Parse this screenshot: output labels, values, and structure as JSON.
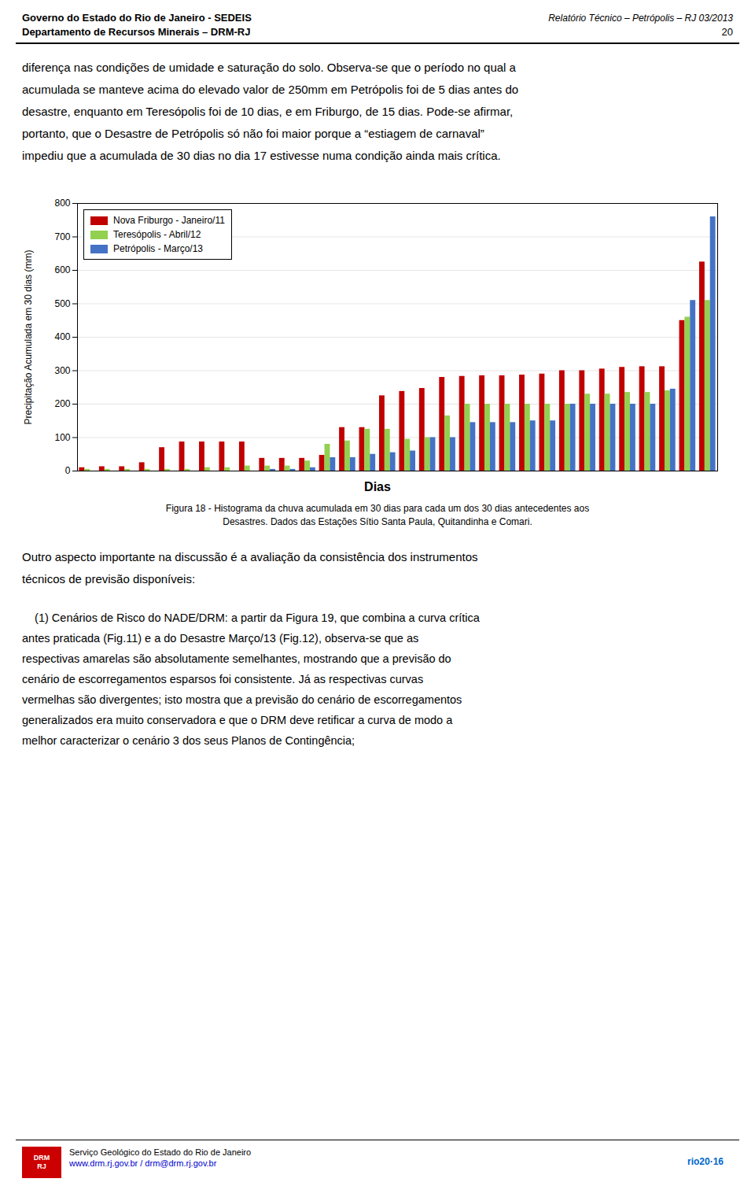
{
  "page": {
    "header_left": [
      "Governo do Estado do Rio de Janeiro - SEDEIS",
      "Departamento de Recursos Minerais – DRM-RJ"
    ],
    "header_right": [
      "Relatório Técnico – Petrópolis – RJ 03/2013",
      "20"
    ],
    "paragraphs_before": [
      [
        "diferença nas condições de umidade e saturação do solo. Observa-se que o período no qual a",
        "acumulada se manteve acima do elevado valor de 250mm em Petrópolis foi de 5 dias antes do",
        "desastre, enquanto em Teresópolis foi de 10 dias, e em Friburgo, de 15 dias. Pode-se afirmar,",
        "portanto, que o Desastre de Petrópolis só não foi maior porque a “estiagem de carnaval”",
        "impediu que a acumulada de 30 dias no dia 17 estivesse numa condição ainda mais crítica."
      ]
    ],
    "paragraphs_after": [
      [
        "Outro aspecto importante na discussão é a avaliação da consistência dos instrumentos",
        "técnicos de previsão disponíveis:"
      ],
      [
        "    (1) Cenários de Risco do NADE/DRM: a partir da Figura 19, que combina a curva crítica",
        "antes praticada (Fig.11) e a do Desastre Março/13 (Fig.12), observa-se que as",
        "respectivas amarelas são absolutamente semelhantes, mostrando que a previsão do",
        "cenário de escorregamentos esparsos foi consistente. Já as respectivas curvas",
        "vermelhas são divergentes; isto mostra que a previsão do cenário de escorregamentos",
        "generalizados era muito conservadora e que o DRM deve retificar a curva de modo a",
        "melhor caracterizar o cenário 3 dos seus Planos de Contingência;"
      ]
    ],
    "footer": {
      "logo": [
        "DRM",
        "RJ"
      ],
      "lines": [
        "Serviço Geológico do Estado do Rio de Janeiro",
        "www.drm.rj.gov.br / drm@drm.rj.gov.br"
      ],
      "right": "rio20·16"
    }
  },
  "chart_data": {
    "type": "bar",
    "ylabel": "Precipitação Acumulada em 30 dias (mm)",
    "xlabel": "Dias",
    "caption": [
      "Figura 18 - Histograma da chuva acumulada em 30 dias para cada um dos 30 dias antecedentes aos",
      "Desastres. Dados das Estações Sítio Santa Paula, Quitandinha e Comari."
    ],
    "categories": [
      null,
      null,
      null,
      null,
      null,
      null,
      null,
      null,
      null,
      null,
      null,
      null,
      null,
      null,
      null,
      null,
      null,
      null,
      null,
      null,
      null,
      null,
      null,
      null,
      null,
      null,
      null,
      null,
      null,
      null,
      null,
      null
    ],
    "series": [
      {
        "name": "Nova Friburgo - Janeiro/11",
        "color": "#C00000",
        "values": [
          10,
          13,
          13,
          25,
          70,
          87,
          87,
          87,
          87,
          38,
          38,
          38,
          47,
          130,
          130,
          225,
          238,
          247,
          280,
          283,
          285,
          285,
          287,
          290,
          300,
          300,
          305,
          310,
          312,
          312,
          450,
          625
        ]
      },
      {
        "name": "Teresópolis - Abril/12",
        "color": "#92D050",
        "values": [
          5,
          5,
          5,
          5,
          5,
          5,
          10,
          10,
          15,
          15,
          15,
          30,
          80,
          90,
          125,
          125,
          95,
          100,
          165,
          200,
          200,
          200,
          200,
          200,
          200,
          230,
          230,
          235,
          235,
          240,
          460,
          510
        ]
      },
      {
        "name": "Petrópolis - Março/13",
        "color": "#4472C4",
        "values": [
          0,
          0,
          0,
          0,
          0,
          0,
          0,
          0,
          0,
          5,
          5,
          10,
          40,
          40,
          50,
          55,
          60,
          100,
          100,
          145,
          145,
          145,
          150,
          150,
          200,
          200,
          200,
          200,
          200,
          245,
          510,
          760
        ]
      }
    ],
    "ylim": [
      0,
      800
    ],
    "yticks": [
      0,
      100,
      200,
      300,
      400,
      500,
      600,
      700,
      800
    ],
    "grid": true,
    "legend": "upper left",
    "tick_labels": "y"
  }
}
